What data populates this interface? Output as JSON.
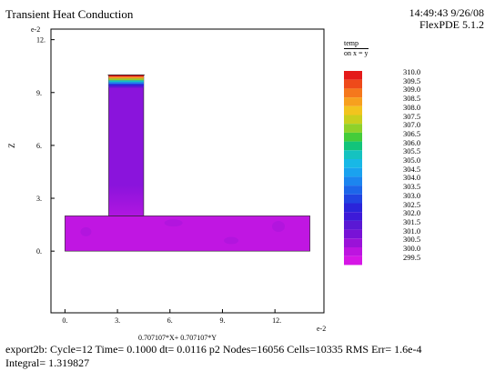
{
  "header": {
    "title": "Transient Heat Conduction",
    "time": "14:49:43 9/26/08",
    "version": "FlexPDE 5.1.2"
  },
  "footer": {
    "line1": "export2b:  Cycle=12  Time= 0.1000  dt= 0.0116  p2  Nodes=16056 Cells=10335 RMS Err= 1.6e-4",
    "line2": "Integral=  1.319827"
  },
  "chart_data": {
    "type": "heatmap",
    "title": "Transient Heat Conduction",
    "xlabel": "0.707107*X+ 0.707107*Y",
    "ylabel": "Z",
    "x_exponent": "e-2",
    "y_exponent": "e-2",
    "x_ticks": [
      "0.",
      "3.",
      "6.",
      "9.",
      "12."
    ],
    "x_tick_values": [
      0,
      3,
      6,
      9,
      12
    ],
    "y_ticks": [
      "0.",
      "3.",
      "6.",
      "9.",
      "12."
    ],
    "y_tick_values": [
      0,
      3,
      6,
      9,
      12
    ],
    "xlim": [
      -0.8,
      14.8
    ],
    "ylim": [
      -3.5,
      12.6
    ],
    "legend": {
      "title": "temp",
      "subtitle": "on x = y",
      "levels": [
        "310.0",
        "309.5",
        "309.0",
        "308.5",
        "308.0",
        "307.5",
        "307.0",
        "306.5",
        "306.0",
        "305.5",
        "305.0",
        "304.5",
        "304.0",
        "303.5",
        "303.0",
        "302.5",
        "302.0",
        "301.5",
        "301.0",
        "300.5",
        "300.0",
        "299.5"
      ],
      "colors": [
        "#e41a1a",
        "#ee4a1a",
        "#f5781c",
        "#f7a01e",
        "#f2c41e",
        "#c9cf1e",
        "#8fd12a",
        "#44cc3a",
        "#12c47a",
        "#15c2c0",
        "#18b8e6",
        "#1aa2ef",
        "#1c85ef",
        "#1d66e9",
        "#2144e2",
        "#2a24da",
        "#3d1ad8",
        "#5a18d4",
        "#7812d6",
        "#9a12d8",
        "#bd14e0",
        "#d616e6"
      ]
    },
    "geometry": {
      "base": {
        "x": [
          0,
          14
        ],
        "z": [
          0,
          2
        ]
      },
      "stem": {
        "x": [
          2.5,
          4.5
        ],
        "z": [
          2,
          10
        ]
      }
    },
    "field": {
      "base_color": "#c016e2",
      "stem_color": "#8a14dc",
      "stem_bottom_color": "#b016e0",
      "top_band_colors": [
        "#e41a1a",
        "#f7a01e",
        "#8fd12a",
        "#15c2c0",
        "#1c85ef",
        "#2a24da",
        "#5a18d4"
      ]
    }
  }
}
